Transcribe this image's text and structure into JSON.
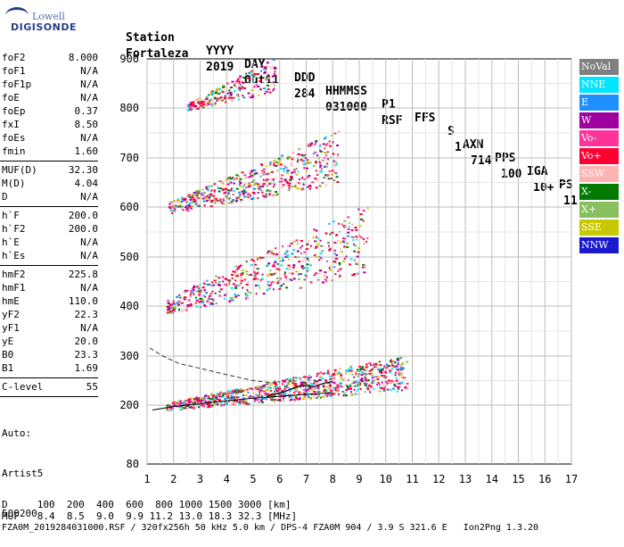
{
  "logo": {
    "line1": "Lowell",
    "line2": "DIGISONDE"
  },
  "header": {
    "labels": [
      "Station",
      "YYYY",
      "DAY",
      "DDD",
      "HHMMSS",
      "P1",
      "FFS",
      "S",
      "AXN",
      "PPS",
      "IGA",
      "PS"
    ],
    "values": [
      "Fortaleza",
      "2019",
      "Out11",
      "284",
      "031000",
      "RSF",
      "",
      "1",
      "714",
      "100",
      "10+",
      "11"
    ]
  },
  "params": {
    "group1": [
      {
        "k": "foF2",
        "v": "8.000"
      },
      {
        "k": "foF1",
        "v": "N/A"
      },
      {
        "k": "foF1p",
        "v": "N/A"
      },
      {
        "k": "foE",
        "v": "N/A"
      },
      {
        "k": "foEp",
        "v": "0.37"
      },
      {
        "k": "fxI",
        "v": "8.50"
      },
      {
        "k": "foEs",
        "v": "N/A"
      },
      {
        "k": "fmin",
        "v": "1.60"
      }
    ],
    "group2": [
      {
        "k": "MUF(D)",
        "v": "32.30"
      },
      {
        "k": "M(D)",
        "v": "4.04"
      },
      {
        "k": "D",
        "v": "N/A"
      }
    ],
    "group3": [
      {
        "k": "h`F",
        "v": "200.0"
      },
      {
        "k": "h`F2",
        "v": "200.0"
      },
      {
        "k": "h`E",
        "v": "N/A"
      },
      {
        "k": "h`Es",
        "v": "N/A"
      }
    ],
    "group4": [
      {
        "k": "hmF2",
        "v": "225.8"
      },
      {
        "k": "hmF1",
        "v": "N/A"
      },
      {
        "k": "hmE",
        "v": "110.0"
      },
      {
        "k": "yF2",
        "v": "22.3"
      },
      {
        "k": "yF1",
        "v": "N/A"
      },
      {
        "k": "yE",
        "v": "20.0"
      },
      {
        "k": "B0",
        "v": "23.3"
      },
      {
        "k": "B1",
        "v": "1.69"
      }
    ],
    "group5": [
      {
        "k": "C-level",
        "v": "55"
      }
    ],
    "extra": [
      "Auto:",
      "Artist5",
      "500200"
    ]
  },
  "legend": [
    {
      "label": "NoVal",
      "color": "#808080",
      "text": "#ffffff"
    },
    {
      "label": "NNE",
      "color": "#00e5ff",
      "text": "#ffffff"
    },
    {
      "label": "E",
      "color": "#1e90ff",
      "text": "#ffffff"
    },
    {
      "label": "W",
      "color": "#a000a0",
      "text": "#ffffff"
    },
    {
      "label": "Vo-",
      "color": "#ff3399",
      "text": "#ffffff"
    },
    {
      "label": "Vo+",
      "color": "#ff0033",
      "text": "#ffffff"
    },
    {
      "label": "SSW",
      "color": "#ffb3b3",
      "text": "#ffffff"
    },
    {
      "label": "X-",
      "color": "#007a00",
      "text": "#ffffff"
    },
    {
      "label": "X+",
      "color": "#88c060",
      "text": "#ffffff"
    },
    {
      "label": "SSE",
      "color": "#c8c800",
      "text": "#ffffff"
    },
    {
      "label": "NNW",
      "color": "#1a1acc",
      "text": "#ffffff"
    }
  ],
  "footer": {
    "line1": "D     100  200  400  600  800 1000 1500 3000 [km]",
    "line2": "MUF   8.4  8.5  9.0  9.9 11.2 13.0 18.3 32.3 [MHz]",
    "line3": "FZA0M_2019284031000.RSF / 320fx256h 50 kHz 5.0 km / DPS-4 FZA0M 904 / 3.9 S 321.6 E   Ion2Png 1.3.20"
  },
  "chart_data": {
    "type": "scatter",
    "x_ticks": [
      "1",
      "2",
      "3",
      "4",
      "5",
      "6",
      "7",
      "8",
      "9",
      "10",
      "11",
      "12",
      "13",
      "14",
      "15",
      "16",
      "17"
    ],
    "y_ticks": [
      "80",
      "200",
      "300",
      "400",
      "500",
      "600",
      "700",
      "800",
      "900"
    ],
    "xlim": [
      1,
      17
    ],
    "ylim_labels": [
      80,
      900
    ],
    "grid": true,
    "traces": [
      {
        "x_range": [
          1.7,
          10.8
        ],
        "y_range": [
          195,
          300
        ]
      },
      {
        "x_range": [
          1.7,
          9.3
        ],
        "y_range": [
          395,
          600
        ]
      },
      {
        "x_range": [
          1.8,
          8.2
        ],
        "y_range": [
          595,
          750
        ]
      },
      {
        "x_range": [
          2.5,
          5.8
        ],
        "y_range": [
          800,
          900
        ]
      }
    ],
    "profile_curve": {
      "x": [
        1.2,
        2,
        3,
        4,
        5,
        6,
        7,
        7.6,
        8
      ],
      "y": [
        190,
        197,
        203,
        209,
        214,
        218,
        222,
        224,
        226
      ]
    },
    "dashed_curve": {
      "x": [
        1.1,
        1.6,
        2.2,
        3,
        4,
        5,
        6
      ],
      "y": [
        316,
        300,
        285,
        275,
        262,
        250,
        244
      ]
    },
    "fit_curve": {
      "x": [
        5.5,
        6.2,
        6.8,
        7.3,
        7.7,
        8.0
      ],
      "y": [
        218,
        228,
        240,
        238,
        245,
        248
      ]
    }
  }
}
